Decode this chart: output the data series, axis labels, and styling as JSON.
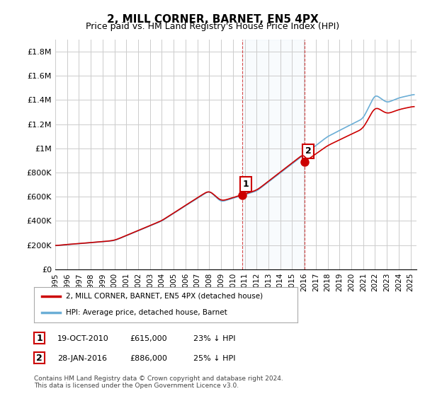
{
  "title": "2, MILL CORNER, BARNET, EN5 4PX",
  "subtitle": "Price paid vs. HM Land Registry's House Price Index (HPI)",
  "ylabel_ticks": [
    "£0",
    "£200K",
    "£400K",
    "£600K",
    "£800K",
    "£1M",
    "£1.2M",
    "£1.4M",
    "£1.6M",
    "£1.8M"
  ],
  "ytick_values": [
    0,
    200000,
    400000,
    600000,
    800000,
    1000000,
    1200000,
    1400000,
    1600000,
    1800000
  ],
  "ylim": [
    0,
    1900000
  ],
  "xlim_start": 1995.0,
  "xlim_end": 2025.5,
  "purchase1_x": 2010.8,
  "purchase1_y": 615000,
  "purchase2_x": 2016.07,
  "purchase2_y": 886000,
  "hpi_color": "#6baed6",
  "price_color": "#cc0000",
  "vline_color": "#cc0000",
  "vline_alpha": 0.5,
  "shade_color": "#d0e8f8",
  "legend_house": "2, MILL CORNER, BARNET, EN5 4PX (detached house)",
  "legend_hpi": "HPI: Average price, detached house, Barnet",
  "annotation1_label": "1",
  "annotation2_label": "2",
  "table_row1": "1    19-OCT-2010         £615,000        23% ↓ HPI",
  "table_row2": "2    28-JAN-2016         £886,000        25% ↓ HPI",
  "footer": "Contains HM Land Registry data © Crown copyright and database right 2024.\nThis data is licensed under the Open Government Licence v3.0.",
  "background_color": "#ffffff",
  "grid_color": "#cccccc"
}
